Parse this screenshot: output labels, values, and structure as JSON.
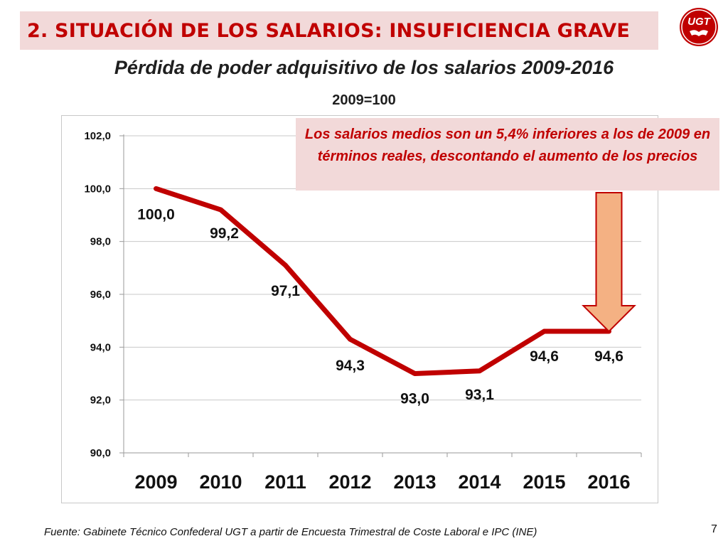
{
  "slide": {
    "title": "2.  SITUACIÓN DE LOS SALARIOS: INSUFICIENCIA GRAVE",
    "logo_text": "UGT",
    "subtitle": "Pérdida de poder adquisitivo de los salarios 2009-2016",
    "base_label": "2009=100",
    "callout": "Los salarios medios son un 5,4% inferiores a los de 2009 en términos reales, descontando el aumento de los precios",
    "source": "Fuente: Gabinete Técnico Confederal UGT a partir de Encuesta Trimestral de Coste Laboral e IPC (INE)",
    "page_number": "7"
  },
  "colors": {
    "accent": "#c00000",
    "header_bg": "#f2d9d9",
    "arrow_fill": "#f4b183",
    "arrow_stroke": "#c00000"
  },
  "chart_data": {
    "type": "line",
    "categories": [
      "2009",
      "2010",
      "2011",
      "2012",
      "2013",
      "2014",
      "2015",
      "2016"
    ],
    "series": [
      {
        "values": [
          100.0,
          99.2,
          97.1,
          94.3,
          93.0,
          93.1,
          94.6,
          94.6
        ]
      }
    ],
    "data_labels": [
      "100,0",
      "99,2",
      "97,1",
      "94,3",
      "93,0",
      "93,1",
      "94,6",
      "94,6"
    ],
    "y_ticks": [
      90.0,
      92.0,
      94.0,
      96.0,
      98.0,
      100.0,
      102.0
    ],
    "y_tick_labels": [
      "90,0",
      "92,0",
      "94,0",
      "96,0",
      "98,0",
      "100,0",
      "102,0"
    ],
    "ylim": [
      90,
      102
    ],
    "grid": true,
    "legend": "none",
    "annotation": "down-arrow ending at 2016 point"
  }
}
